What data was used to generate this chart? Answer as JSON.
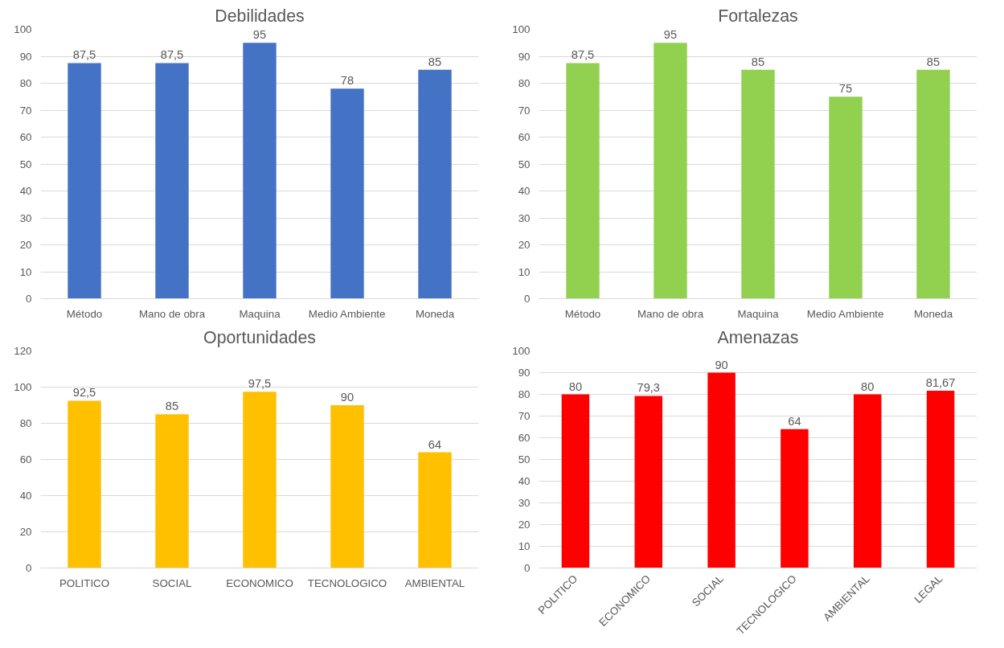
{
  "chart_data": [
    {
      "type": "bar",
      "title": "Debilidades",
      "categories": [
        "Método",
        "Mano de obra",
        "Maquina",
        "Medio Ambiente",
        "Moneda"
      ],
      "values": [
        87.5,
        87.5,
        95,
        78,
        85
      ],
      "value_labels": [
        "87,5",
        "87,5",
        "95",
        "78",
        "85"
      ],
      "color": "#4472c4",
      "ylim": [
        0,
        100
      ],
      "yticks": [
        0,
        10,
        20,
        30,
        40,
        50,
        60,
        70,
        80,
        90,
        100
      ],
      "grid": "y"
    },
    {
      "type": "bar",
      "title": "Fortalezas",
      "categories": [
        "Método",
        "Mano de obra",
        "Maquina",
        "Medio Ambiente",
        "Moneda"
      ],
      "values": [
        87.5,
        95,
        85,
        75,
        85
      ],
      "value_labels": [
        "87,5",
        "95",
        "85",
        "75",
        "85"
      ],
      "color": "#92d050",
      "ylim": [
        0,
        100
      ],
      "yticks": [
        0,
        10,
        20,
        30,
        40,
        50,
        60,
        70,
        80,
        90,
        100
      ],
      "grid": "y"
    },
    {
      "type": "bar",
      "title": "Oportunidades",
      "categories": [
        "POLITICO",
        "SOCIAL",
        "ECONOMICO",
        "TECNOLOGICO",
        "AMBIENTAL"
      ],
      "values": [
        92.5,
        85,
        97.5,
        90,
        64
      ],
      "value_labels": [
        "92,5",
        "85",
        "97,5",
        "90",
        "64"
      ],
      "color": "#ffc000",
      "ylim": [
        0,
        120
      ],
      "yticks": [
        0,
        20,
        40,
        60,
        80,
        100,
        120
      ],
      "grid": "y"
    },
    {
      "type": "bar",
      "title": "Amenazas",
      "categories": [
        "POLITICO",
        "ECONOMICO",
        "SOCIAL",
        "TECNOLOGICO",
        "AMBIENTAL",
        "LEGAL"
      ],
      "values": [
        80,
        79.3,
        90,
        64,
        80,
        81.67
      ],
      "value_labels": [
        "80",
        "79,3",
        "90",
        "64",
        "80",
        "81,67"
      ],
      "color": "#ff0000",
      "ylim": [
        0,
        100
      ],
      "yticks": [
        0,
        10,
        20,
        30,
        40,
        50,
        60,
        70,
        80,
        90,
        100
      ],
      "grid": "y"
    }
  ]
}
